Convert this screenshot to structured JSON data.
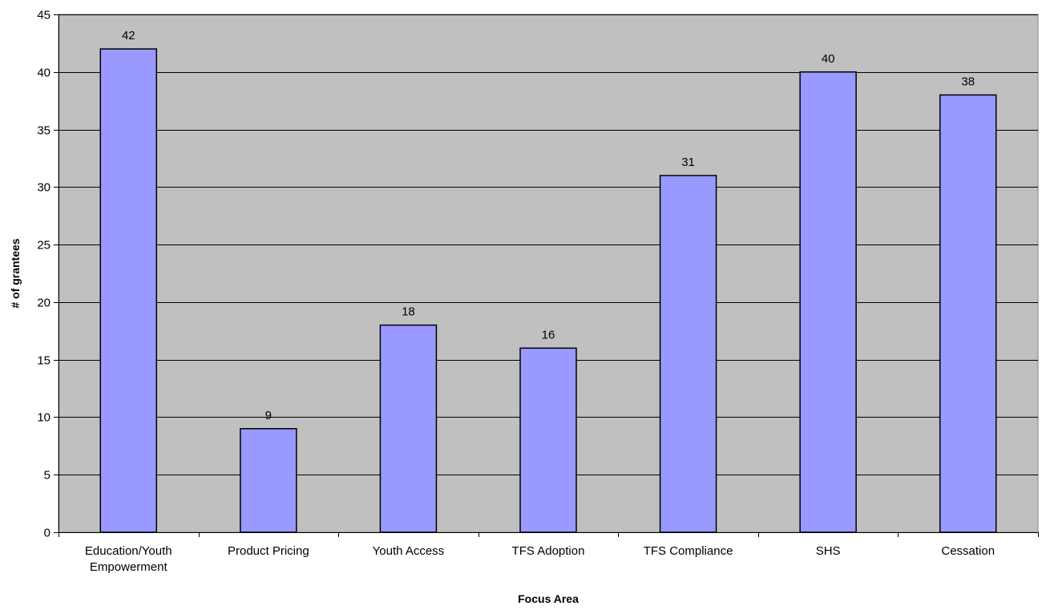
{
  "colors": {
    "plot_background": "#c0c0c0",
    "bar_fill": "#9999ff",
    "bar_stroke": "#000000",
    "gridline": "#000000"
  },
  "chart_data": {
    "type": "bar",
    "title": "",
    "xlabel": "Focus Area",
    "ylabel": "# of grantees",
    "categories": [
      [
        "Education/Youth",
        "Empowerment"
      ],
      [
        "Product Pricing"
      ],
      [
        "Youth Access"
      ],
      [
        "TFS Adoption"
      ],
      [
        "TFS Compliance"
      ],
      [
        "SHS"
      ],
      [
        "Cessation"
      ]
    ],
    "values": [
      42,
      9,
      18,
      16,
      31,
      40,
      38
    ],
    "ylim": [
      0,
      45
    ],
    "yticks": [
      0,
      5,
      10,
      15,
      20,
      25,
      30,
      35,
      40,
      45
    ],
    "grid": true,
    "data_labels": true,
    "legend": "none"
  }
}
